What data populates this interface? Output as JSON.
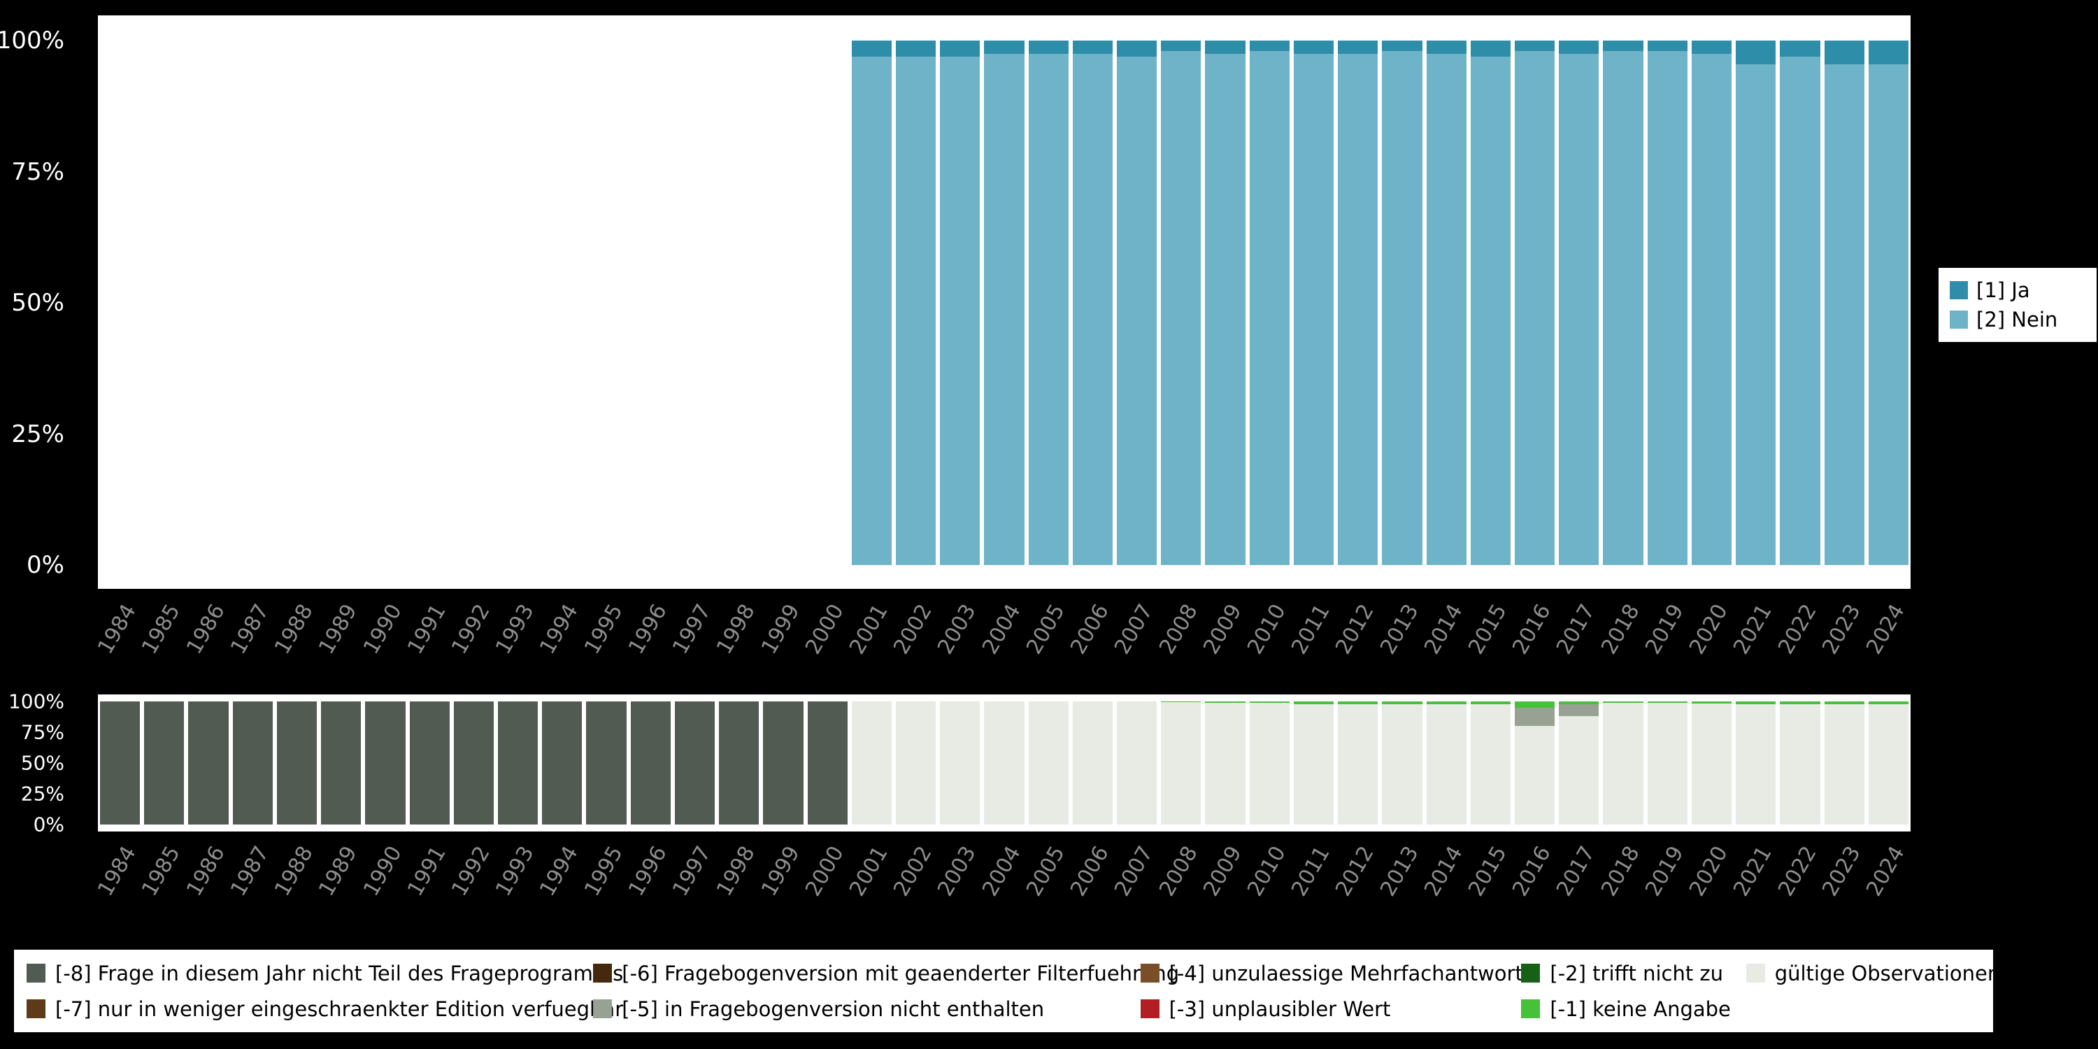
{
  "chart_data": [
    {
      "id": "main",
      "type": "bar",
      "stacked": true,
      "stacking": "bottom-to-top",
      "title": "",
      "xlabel": "",
      "ylabel": "",
      "ylim": [
        0,
        100
      ],
      "grid": false,
      "legend_position": "right",
      "yticks": [
        {
          "label": "100%",
          "value": 100
        },
        {
          "label": "75%",
          "value": 75
        },
        {
          "label": "50%",
          "value": 50
        },
        {
          "label": "25%",
          "value": 25
        },
        {
          "label": "0%",
          "value": 0
        }
      ],
      "categories": [
        "1984",
        "1985",
        "1986",
        "1987",
        "1988",
        "1989",
        "1990",
        "1991",
        "1992",
        "1993",
        "1994",
        "1995",
        "1996",
        "1997",
        "1998",
        "1999",
        "2000",
        "2001",
        "2002",
        "2003",
        "2004",
        "2005",
        "2006",
        "2007",
        "2008",
        "2009",
        "2010",
        "2011",
        "2012",
        "2013",
        "2014",
        "2015",
        "2016",
        "2017",
        "2018",
        "2019",
        "2020",
        "2021",
        "2022",
        "2023",
        "2024"
      ],
      "series": [
        {
          "name": "[2] Nein",
          "color": "#6fb3c8",
          "values": [
            null,
            null,
            null,
            null,
            null,
            null,
            null,
            null,
            null,
            null,
            null,
            null,
            null,
            null,
            null,
            null,
            null,
            97,
            97,
            97,
            97.5,
            97.5,
            97.5,
            97,
            98,
            97.5,
            98,
            97.5,
            97.5,
            98,
            97.5,
            97,
            98,
            97.5,
            98,
            98,
            97.5,
            95.5,
            97,
            95.5,
            95.5
          ]
        },
        {
          "name": "[1] Ja",
          "color": "#2e8da8",
          "values": [
            null,
            null,
            null,
            null,
            null,
            null,
            null,
            null,
            null,
            null,
            null,
            null,
            null,
            null,
            null,
            null,
            null,
            3,
            3,
            3,
            2.5,
            2.5,
            2.5,
            3,
            2,
            2.5,
            2,
            2.5,
            2.5,
            2,
            2.5,
            3,
            2,
            2.5,
            2,
            2,
            2.5,
            4.5,
            3,
            4.5,
            4.5
          ]
        }
      ]
    },
    {
      "id": "missings",
      "type": "bar",
      "stacked": true,
      "stacking": "bottom-to-top",
      "title": "",
      "xlabel": "",
      "ylabel": "",
      "ylim": [
        0,
        100
      ],
      "grid": false,
      "legend_position": "bottom",
      "yticks": [
        {
          "label": "100%",
          "value": 100
        },
        {
          "label": "75%",
          "value": 75
        },
        {
          "label": "50%",
          "value": 50
        },
        {
          "label": "25%",
          "value": 25
        },
        {
          "label": "0%",
          "value": 0
        }
      ],
      "categories": [
        "1984",
        "1985",
        "1986",
        "1987",
        "1988",
        "1989",
        "1990",
        "1991",
        "1992",
        "1993",
        "1994",
        "1995",
        "1996",
        "1997",
        "1998",
        "1999",
        "2000",
        "2001",
        "2002",
        "2003",
        "2004",
        "2005",
        "2006",
        "2007",
        "2008",
        "2009",
        "2010",
        "2011",
        "2012",
        "2013",
        "2014",
        "2015",
        "2016",
        "2017",
        "2018",
        "2019",
        "2020",
        "2021",
        "2022",
        "2023",
        "2024"
      ],
      "series": [
        {
          "name": "[-8] Frage in diesem Jahr nicht Teil des Frageprogramms",
          "color": "#515b51",
          "values": [
            100,
            100,
            100,
            100,
            100,
            100,
            100,
            100,
            100,
            100,
            100,
            100,
            100,
            100,
            100,
            100,
            100,
            null,
            null,
            null,
            null,
            null,
            null,
            null,
            null,
            null,
            null,
            null,
            null,
            null,
            null,
            null,
            null,
            null,
            null,
            null,
            null,
            null,
            null,
            null,
            null
          ]
        },
        {
          "name": "gültige Observationen",
          "color": "#e7ebe4",
          "values": [
            null,
            null,
            null,
            null,
            null,
            null,
            null,
            null,
            null,
            null,
            null,
            null,
            null,
            null,
            null,
            null,
            null,
            100,
            100,
            100,
            100,
            100,
            100,
            100,
            99.5,
            99,
            99,
            98,
            98,
            98,
            98,
            98,
            80,
            88,
            99,
            99,
            98.5,
            98,
            98,
            98,
            98
          ]
        },
        {
          "name": "[-5] in Fragebogenversion nicht enthalten",
          "color": "#99a195",
          "values": [
            null,
            null,
            null,
            null,
            null,
            null,
            null,
            null,
            null,
            null,
            null,
            null,
            null,
            null,
            null,
            null,
            null,
            0,
            0,
            0,
            0,
            0,
            0,
            0,
            0,
            0,
            0,
            0,
            0,
            0,
            0,
            0,
            15,
            10,
            0,
            0,
            0,
            0,
            0,
            0,
            0
          ]
        },
        {
          "name": "[-1] keine Angabe",
          "color": "#45c13a",
          "values": [
            null,
            null,
            null,
            null,
            null,
            null,
            null,
            null,
            null,
            null,
            null,
            null,
            null,
            null,
            null,
            null,
            null,
            0,
            0,
            0,
            0,
            0,
            0,
            0,
            0.5,
            1,
            1,
            2,
            2,
            2,
            2,
            2,
            5,
            2,
            1,
            1,
            1.5,
            2,
            2,
            2,
            2
          ]
        }
      ]
    }
  ],
  "legend_right": [
    {
      "label": "[1] Ja",
      "color": "#2e8da8"
    },
    {
      "label": "[2] Nein",
      "color": "#6fb3c8"
    }
  ],
  "legend_bottom": {
    "rows": [
      [
        {
          "label": "[-8] Frage in diesem Jahr nicht Teil des Frageprogramms",
          "color": "#515b51"
        },
        {
          "label": "[-6] Fragebogenversion mit geaenderter Filterfuehrung",
          "color": "#44290f"
        },
        {
          "label": "[-4] unzulaessige Mehrfachantwort",
          "color": "#7a4f28"
        },
        {
          "label": "[-2] trifft nicht zu",
          "color": "#176117"
        },
        {
          "label": "gültige Observationen",
          "color": "#e7ebe4"
        }
      ],
      [
        {
          "label": "[-7] nur in weniger eingeschraenkter Edition verfuegbar",
          "color": "#5e3a18"
        },
        {
          "label": "[-5] in Fragebogenversion nicht enthalten",
          "color": "#99a195"
        },
        {
          "label": "[-3] unplausibler Wert",
          "color": "#b11f24"
        },
        {
          "label": "[-1] keine Angabe",
          "color": "#45c13a"
        },
        null
      ]
    ]
  }
}
